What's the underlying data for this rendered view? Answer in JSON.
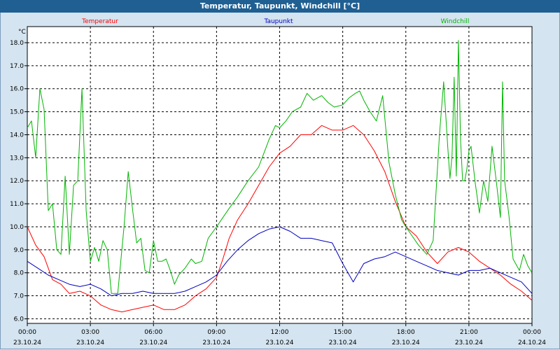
{
  "window": {
    "title": "Temperatur, Taupunkt, Windchill [°C]"
  },
  "chart_data": {
    "type": "line",
    "title": "Temperatur, Taupunkt, Windchill [°C]",
    "ylabel": "°C",
    "ylim": [
      5.8,
      18.7
    ],
    "yticks": [
      6.0,
      7.0,
      8.0,
      9.0,
      10.0,
      11.0,
      12.0,
      13.0,
      14.0,
      15.0,
      16.0,
      17.0,
      18.0
    ],
    "xlim": [
      0,
      24
    ],
    "xticks": [
      {
        "x": 0,
        "time": "00:00",
        "date": "23.10.24"
      },
      {
        "x": 3,
        "time": "03:00",
        "date": "23.10.24"
      },
      {
        "x": 6,
        "time": "06:00",
        "date": "23.10.24"
      },
      {
        "x": 9,
        "time": "09:00",
        "date": "23.10.24"
      },
      {
        "x": 12,
        "time": "12:00",
        "date": "23.10.24"
      },
      {
        "x": 15,
        "time": "15:00",
        "date": "23.10.24"
      },
      {
        "x": 18,
        "time": "18:00",
        "date": "23.10.24"
      },
      {
        "x": 21,
        "time": "21:00",
        "date": "23.10.24"
      },
      {
        "x": 24,
        "time": "00:00",
        "date": "24.10.24"
      }
    ],
    "grid": true,
    "legend_position": "top",
    "series": [
      {
        "name": "Temperatur",
        "color": "#ff0000",
        "x": [
          0,
          0.4,
          0.8,
          1.2,
          1.6,
          2.0,
          2.5,
          3.0,
          3.5,
          4.0,
          4.5,
          5.0,
          5.5,
          6.0,
          6.5,
          7.0,
          7.5,
          8.0,
          8.5,
          9.0,
          9.3,
          9.6,
          10.0,
          10.5,
          11.0,
          11.5,
          12.0,
          12.5,
          13.0,
          13.5,
          14.0,
          14.5,
          15.0,
          15.5,
          16.0,
          16.5,
          17.0,
          17.5,
          18.0,
          18.5,
          19.0,
          19.5,
          20.0,
          20.5,
          21.0,
          21.5,
          22.0,
          22.5,
          23.0,
          23.5,
          24.0
        ],
        "y": [
          10.0,
          9.2,
          8.7,
          7.7,
          7.5,
          7.1,
          7.2,
          7.0,
          6.6,
          6.4,
          6.3,
          6.4,
          6.5,
          6.6,
          6.4,
          6.4,
          6.6,
          7.0,
          7.3,
          7.8,
          8.6,
          9.5,
          10.3,
          11.0,
          11.8,
          12.6,
          13.2,
          13.5,
          14.0,
          14.0,
          14.4,
          14.2,
          14.2,
          14.4,
          14.0,
          13.3,
          12.4,
          11.1,
          10.0,
          9.6,
          8.9,
          8.4,
          8.9,
          9.1,
          8.9,
          8.5,
          8.2,
          7.9,
          7.5,
          7.2,
          6.8
        ]
      },
      {
        "name": "Taupunkt",
        "color": "#0000c0",
        "x": [
          0,
          0.5,
          1.0,
          1.5,
          2.0,
          2.5,
          3.0,
          3.5,
          4.0,
          4.5,
          5.0,
          5.5,
          6.0,
          6.5,
          7.0,
          7.5,
          8.0,
          8.5,
          9.0,
          9.5,
          10.0,
          10.5,
          11.0,
          11.5,
          12.0,
          12.5,
          13.0,
          13.5,
          14.0,
          14.5,
          15.0,
          15.5,
          16.0,
          16.5,
          17.0,
          17.5,
          18.0,
          18.5,
          19.0,
          19.5,
          20.0,
          20.5,
          21.0,
          21.5,
          22.0,
          22.5,
          23.0,
          23.5,
          24.0
        ],
        "y": [
          8.5,
          8.2,
          7.9,
          7.7,
          7.5,
          7.4,
          7.5,
          7.3,
          7.0,
          7.1,
          7.1,
          7.2,
          7.1,
          7.1,
          7.1,
          7.2,
          7.4,
          7.6,
          7.9,
          8.5,
          9.0,
          9.4,
          9.7,
          9.9,
          10.0,
          9.8,
          9.5,
          9.5,
          9.4,
          9.3,
          8.4,
          7.6,
          8.4,
          8.6,
          8.7,
          8.9,
          8.7,
          8.5,
          8.3,
          8.1,
          8.0,
          7.9,
          8.1,
          8.1,
          8.2,
          8.0,
          7.8,
          7.6,
          7.1
        ]
      },
      {
        "name": "Windchill",
        "color": "#00b400",
        "x": [
          0,
          0.2,
          0.4,
          0.6,
          0.8,
          1.0,
          1.2,
          1.4,
          1.6,
          1.8,
          2.0,
          2.2,
          2.4,
          2.6,
          2.8,
          3.0,
          3.2,
          3.4,
          3.6,
          3.8,
          4.0,
          4.3,
          4.6,
          4.8,
          5.0,
          5.2,
          5.4,
          5.6,
          5.8,
          6.0,
          6.2,
          6.4,
          6.6,
          6.8,
          7.0,
          7.2,
          7.5,
          7.8,
          8.0,
          8.3,
          8.6,
          9.0,
          9.3,
          9.6,
          10.0,
          10.5,
          11.0,
          11.5,
          11.8,
          12.0,
          12.3,
          12.6,
          13.0,
          13.3,
          13.6,
          14.0,
          14.3,
          14.6,
          15.0,
          15.3,
          15.6,
          15.8,
          16.0,
          16.3,
          16.6,
          16.9,
          17.2,
          17.5,
          17.8,
          18.0,
          18.3,
          18.6,
          19.0,
          19.3,
          19.6,
          19.8,
          20.0,
          20.1,
          20.2,
          20.3,
          20.4,
          20.5,
          20.6,
          20.7,
          20.8,
          20.9,
          21.0,
          21.1,
          21.3,
          21.5,
          21.7,
          21.9,
          22.1,
          22.3,
          22.5,
          22.6,
          22.7,
          22.9,
          23.1,
          23.4,
          23.6,
          23.8,
          24.0
        ],
        "y": [
          14.3,
          14.6,
          13.0,
          16.0,
          15.1,
          10.7,
          11.0,
          9.0,
          8.8,
          12.2,
          8.8,
          11.8,
          12.0,
          16.0,
          10.7,
          8.5,
          9.1,
          8.5,
          9.4,
          9.0,
          7.1,
          7.1,
          10.0,
          12.4,
          10.8,
          9.3,
          9.5,
          8.1,
          8.0,
          9.4,
          8.5,
          8.5,
          8.6,
          8.1,
          7.5,
          7.9,
          8.2,
          8.6,
          8.4,
          8.5,
          9.5,
          10.0,
          10.4,
          10.8,
          11.3,
          12.0,
          12.6,
          13.8,
          14.4,
          14.3,
          14.6,
          15.0,
          15.2,
          15.8,
          15.5,
          15.7,
          15.4,
          15.2,
          15.3,
          15.6,
          15.8,
          15.9,
          15.5,
          15.0,
          14.6,
          15.7,
          12.8,
          11.4,
          10.3,
          10.0,
          9.6,
          9.2,
          8.8,
          9.4,
          14.0,
          16.3,
          13.4,
          12.1,
          13.1,
          16.5,
          12.2,
          18.1,
          13.8,
          12.0,
          12.0,
          12.5,
          13.3,
          13.5,
          11.9,
          10.6,
          12.0,
          11.1,
          13.5,
          12.0,
          10.4,
          16.3,
          12.0,
          10.5,
          8.6,
          8.1,
          8.8,
          8.3,
          8.0
        ]
      }
    ]
  }
}
